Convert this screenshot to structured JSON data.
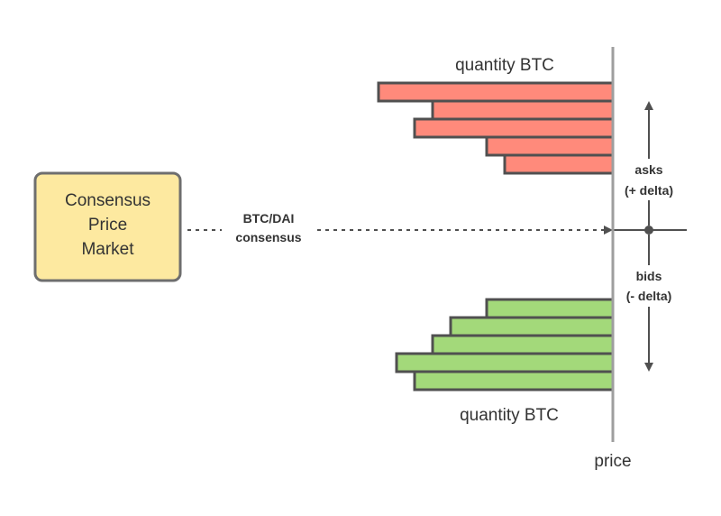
{
  "consensus_box": {
    "lines": [
      "Consensus",
      "Price",
      "Market"
    ],
    "fill": "#FDE9A0",
    "stroke": "#6E6E6E"
  },
  "flow_label": {
    "line1": "BTC/DAI",
    "line2": "consensus"
  },
  "asks": {
    "quantity_label": "quantity BTC",
    "side_label_1": "asks",
    "side_label_2": "(+ delta)",
    "bar_color": "#FF8A7B",
    "quantities_top_to_bottom": [
      13,
      10,
      11,
      7,
      6
    ]
  },
  "bids": {
    "quantity_label": "quantity BTC",
    "side_label_1": "bids",
    "side_label_2": "(- delta)",
    "bar_color": "#A3D97A",
    "quantities_top_to_bottom": [
      7,
      9,
      10,
      12,
      11
    ]
  },
  "axis": {
    "price_label": "price",
    "color": "#9E9E9E"
  },
  "arrow_color": "#505050"
}
